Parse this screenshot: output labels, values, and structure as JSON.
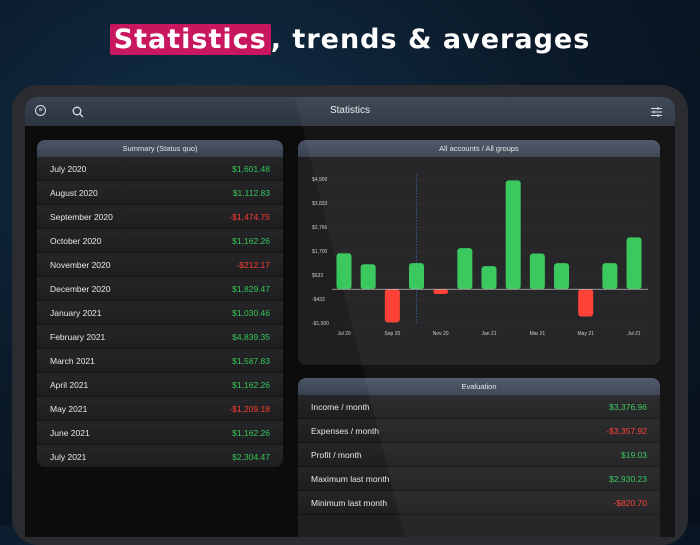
{
  "headline": {
    "highlight": "Statistics",
    "rest": ", trends & averages",
    "highlight_color": "#c8175f"
  },
  "nav": {
    "title": "Statistics",
    "left_icons": [
      "menu-icon",
      "search-icon"
    ],
    "right_icon": "sliders-icon"
  },
  "summary": {
    "title": "Summary (Status quo)",
    "rows": [
      {
        "label": "July 2020",
        "value": "$1,601.48",
        "sign": "pos"
      },
      {
        "label": "August 2020",
        "value": "$1,112.83",
        "sign": "pos"
      },
      {
        "label": "September 2020",
        "value": "-$1,474.75",
        "sign": "neg"
      },
      {
        "label": "October 2020",
        "value": "$1,162.26",
        "sign": "pos"
      },
      {
        "label": "November 2020",
        "value": "-$212.17",
        "sign": "neg"
      },
      {
        "label": "December 2020",
        "value": "$1,829.47",
        "sign": "pos"
      },
      {
        "label": "January 2021",
        "value": "$1,030.46",
        "sign": "pos"
      },
      {
        "label": "February 2021",
        "value": "$4,839.35",
        "sign": "pos"
      },
      {
        "label": "March 2021",
        "value": "$1,587.83",
        "sign": "pos"
      },
      {
        "label": "April 2021",
        "value": "$1,162.26",
        "sign": "pos"
      },
      {
        "label": "May 2021",
        "value": "-$1,209.18",
        "sign": "neg"
      },
      {
        "label": "June 2021",
        "value": "$1,162.26",
        "sign": "pos"
      },
      {
        "label": "July 2021",
        "value": "$2,304.47",
        "sign": "pos"
      }
    ]
  },
  "chart_data": {
    "type": "bar",
    "title": "All accounts / All groups",
    "categories": [
      "Jul 20",
      "Aug 20",
      "Sep 20",
      "Oct 20",
      "Nov 20",
      "Dec 20",
      "Jan 21",
      "Feb 21",
      "Mar 21",
      "Apr 21",
      "May 21",
      "Jun 21",
      "Jul 21"
    ],
    "x_tick_labels": [
      "Jul 20",
      "",
      "Sep 20",
      "",
      "Nov 20",
      "",
      "Jan 21",
      "",
      "Mar 21",
      "",
      "May 21",
      "",
      "Jul 21"
    ],
    "values": [
      1601.48,
      1112.83,
      -1474.75,
      1162.26,
      -212.17,
      1829.47,
      1030.46,
      4839.35,
      1587.83,
      1162.26,
      -1209.18,
      1162.26,
      2304.47
    ],
    "y_ticks": [
      4900,
      3833,
      2766,
      1700,
      633,
      -433,
      -1500
    ],
    "y_tick_labels": [
      "$4,900",
      "$3,833",
      "$2,766",
      "$1,700",
      "$633",
      "-$433",
      "-$1,500"
    ],
    "ylim": [
      -1500,
      4900
    ],
    "grid": true,
    "marker_category": "Oct 20",
    "colors": {
      "positive": "#34c759",
      "negative": "#ff3b30"
    }
  },
  "evaluation": {
    "title": "Evaluation",
    "rows": [
      {
        "label": "Income / month",
        "value": "$3,376.96",
        "sign": "pos"
      },
      {
        "label": "Expenses / month",
        "value": "-$3,357.92",
        "sign": "neg"
      },
      {
        "label": "Profit / month",
        "value": "$19.03",
        "sign": "pos"
      },
      {
        "label": "Maximum last month",
        "value": "$2,930.23",
        "sign": "pos"
      },
      {
        "label": "Minimum last month",
        "value": "-$820.70",
        "sign": "neg"
      }
    ]
  }
}
